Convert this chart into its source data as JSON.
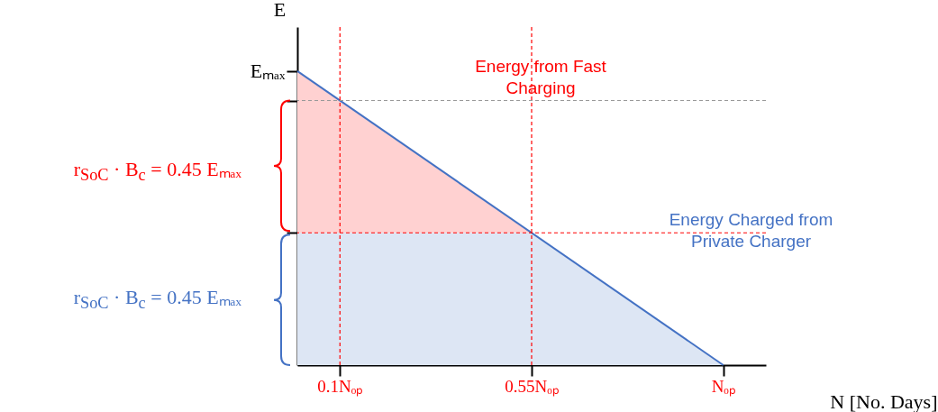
{
  "chart_data": {
    "type": "line",
    "xlabel": "N [No. Days]",
    "ylabel": "E",
    "xlim": [
      0,
      1.1
    ],
    "ylim": [
      0,
      1.15
    ],
    "xticks": [
      {
        "value": 0.1,
        "label": "0.1Nₒₚ"
      },
      {
        "value": 0.55,
        "label": "0.55Nₒₚ"
      },
      {
        "value": 1,
        "label": "Nₒₚ"
      }
    ],
    "yticks": [
      {
        "value": 0.45,
        "label": null
      },
      {
        "value": 0.9,
        "label": null
      },
      {
        "value": 1,
        "label": "Eₘₐₓ"
      }
    ],
    "series": [
      {
        "type": "area",
        "color": "#ffd1d1",
        "x": [
          0,
          0.55
        ],
        "values": [
          1,
          0.45
        ]
      },
      {
        "type": "area",
        "color": "#dde6f4",
        "x": [
          0,
          0.55,
          1
        ],
        "values": [
          0.45,
          0.45,
          0
        ]
      },
      {
        "type": "line",
        "color": "#4472c4",
        "x": [
          0,
          1
        ],
        "values": [
          1,
          0
        ]
      }
    ],
    "ref_lines": [
      {
        "axis": "x",
        "value": 0.1,
        "color": "#ff0000",
        "line_style": "dashed"
      },
      {
        "axis": "x",
        "value": 0.55,
        "color": "#ff0000",
        "line_style": "dashed"
      },
      {
        "axis": "y",
        "value": 0.45,
        "color": "#ff0000",
        "line_style": "dashed"
      },
      {
        "axis": "y",
        "value": 0.9,
        "color": "#999999",
        "line_style": "dashed"
      }
    ],
    "annotations": [
      "Energy from Fast Charging",
      "Energy Charged from Private Charger",
      "r$_{SoC}$ · B$_{c}$ = 0.45 Eₘₐₓ",
      "r$_{SoC}$ · B$_{c}$ = 0.45 Eₘₐₓ"
    ],
    "grid": false
  }
}
